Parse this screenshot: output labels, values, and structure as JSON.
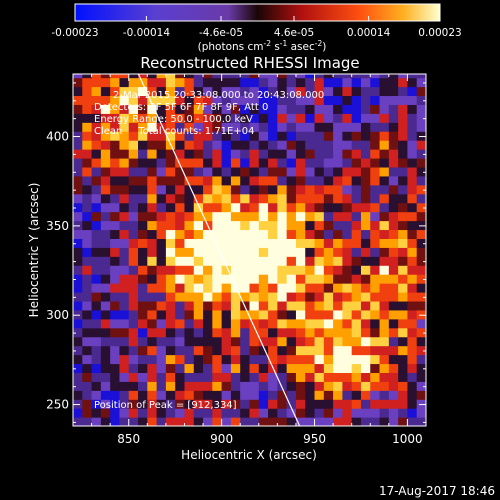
{
  "chart_data": {
    "type": "heatmap",
    "title": "Reconstructed RHESSI Image",
    "xlabel": "Heliocentric X (arcsec)",
    "ylabel": "Heliocentric Y (arcsec)",
    "xlim": [
      820,
      1010
    ],
    "ylim": [
      238,
      435
    ],
    "x_ticks": [
      850,
      900,
      950,
      1000
    ],
    "y_ticks": [
      250,
      300,
      350,
      400
    ],
    "colorbar": {
      "min": -0.00023,
      "max": 0.00023,
      "ticks": [
        -0.00023,
        -0.00014,
        -4.6e-05,
        4.6e-05,
        0.00014,
        0.00023
      ],
      "tick_labels": [
        "-0.00023",
        "-0.00014",
        "-4.6e-05",
        "4.6e-05",
        "0.00014",
        "0.00023"
      ],
      "unit_label": {
        "base": "(photons cm",
        "sup1": "-2",
        "mid1": " s",
        "sup2": "-1",
        "mid2": " asec",
        "sup3": "-2",
        "end": ")"
      }
    },
    "annotations": [
      "2-Mar-2015 20:33:08.000 to 20:43:08.000",
      "Detectors: 3F 5F 6F 7F 8F 9F, Att 0",
      "Energy Range: 50.0 - 100.0 keV",
      "Clean     Total counts: 1.71E+04"
    ],
    "peak_label": "Position of Peak = [912,334]",
    "peak": [
      912,
      334
    ],
    "limb_line": [
      [
        853,
        440
      ],
      [
        942,
        238
      ]
    ],
    "sources": [
      {
        "x": 906,
        "y": 336,
        "amplitude": 1.0
      },
      {
        "x": 965,
        "y": 278,
        "amplitude": 0.8
      },
      {
        "x": 1000,
        "y": 325,
        "amplitude": 0.55
      },
      {
        "x": 878,
        "y": 328,
        "amplitude": 0.5
      },
      {
        "x": 860,
        "y": 415,
        "amplitude": 0.5
      },
      {
        "x": 838,
        "y": 405,
        "amplitude": 0.45
      },
      {
        "x": 935,
        "y": 345,
        "amplitude": 0.4
      },
      {
        "x": 880,
        "y": 262,
        "amplitude": 0.35
      },
      {
        "x": 990,
        "y": 385,
        "amplitude": 0.3
      },
      {
        "x": 940,
        "y": 305,
        "amplitude": 0.35
      }
    ],
    "colors": {
      "low": "#1a10d8",
      "mid_low": "#6a40c0",
      "zero": "#2a1030",
      "mid_high": "#d02020",
      "high": "#ffa000",
      "peak": "#ffffe0"
    }
  },
  "footer": {
    "timestamp": "17-Aug-2017 18:46"
  }
}
